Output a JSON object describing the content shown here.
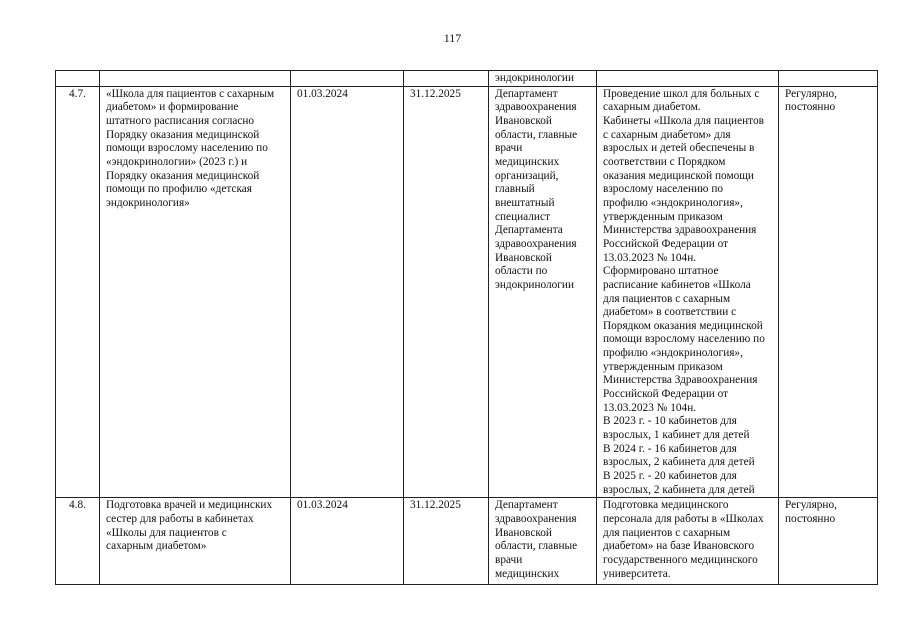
{
  "page_number": "117",
  "continuation_row": {
    "cells": [
      "",
      "",
      "",
      "",
      "эндокринологии",
      "",
      ""
    ]
  },
  "rows": [
    {
      "number": "4.7.",
      "activity": "«Школа для пациентов с сахарным\nдиабетом» и формирование\nштатного расписания согласно\nПорядку оказания медицинской\nпомощи взрослому населению по\n«эндокринологии» (2023 г.) и\nПорядку оказания медицинской\nпомощи по профилю «детская\nэндокринология»",
      "start_date": "01.03.2024",
      "end_date": "31.12.2025",
      "responsible": "Департамент\nздравоохранения\nИвановской\nобласти, главные\nврачи\nмедицинских\nорганизаций,\nглавный\nвнештатный\nспециалист\nДепартамента\nздравоохранения\nИвановской\nобласти по\nэндокринологии",
      "result": "Проведение школ для больных с\nсахарным диабетом.\nКабинеты «Школа для пациентов\nс сахарным диабетом» для\nвзрослых и детей обеспечены в\nсоответствии с Порядком\nоказания медицинской помощи\nвзрослому населению по\nпрофилю «эндокринология»,\nутвержденным приказом\nМинистерства здравоохранения\nРоссийской Федерации от\n13.03.2023 № 104н.\nСформировано штатное\nрасписание кабинетов «Школа\nдля пациентов с сахарным\nдиабетом» в соответствии с\nПорядком оказания медицинской\nпомощи взрослому населению по\nпрофилю «эндокринология»,\nутвержденным приказом\nМинистерства Здравоохранения\nРоссийской Федерации от\n13.03.2023 № 104н.\nВ 2023 г. - 10 кабинетов для\nвзрослых, 1 кабинет для детей\nВ 2024 г. - 16 кабинетов для\nвзрослых, 2 кабинета для детей\nВ 2025 г. - 20 кабинетов для\nвзрослых, 2 кабинета для детей",
      "frequency": "Регулярно,\nпостоянно"
    },
    {
      "number": "4.8.",
      "activity": "Подготовка врачей и медицинских\nсестер для работы в кабинетах\n«Школы для пациентов с\nсахарным диабетом»",
      "start_date": "01.03.2024",
      "end_date": "31.12.2025",
      "responsible": "Департамент\nздравоохранения\nИвановской\nобласти, главные\nврачи\nмедицинских",
      "result": "Подготовка медицинского\nперсонала для работы в «Школах\nдля пациентов с сахарным\nдиабетом» на базе Ивановского\nгосударственного медицинского\nуниверситета.",
      "frequency": "Регулярно,\nпостоянно"
    }
  ]
}
